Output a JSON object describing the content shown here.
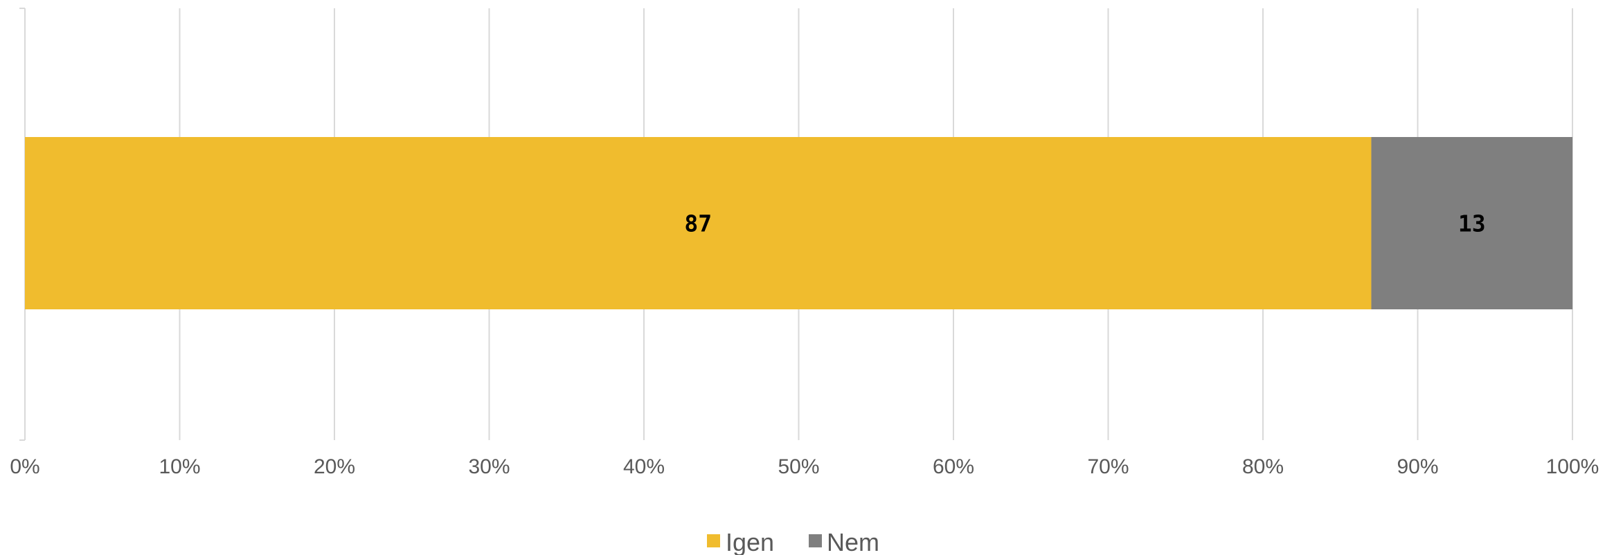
{
  "chart_data": {
    "type": "bar",
    "orientation": "horizontal",
    "stacked": "percent",
    "categories": [
      ""
    ],
    "series": [
      {
        "name": "Igen",
        "values": [
          87
        ],
        "color": "#F0BC2E",
        "label": "87"
      },
      {
        "name": "Nem",
        "values": [
          13
        ],
        "color": "#7F7F7F",
        "label": "13"
      }
    ],
    "xlim": [
      0,
      100
    ],
    "x_ticks": [
      "0%",
      "10%",
      "20%",
      "30%",
      "40%",
      "50%",
      "60%",
      "70%",
      "80%",
      "90%",
      "100%"
    ],
    "grid": true,
    "legend": "bottom",
    "title": "",
    "xlabel": "",
    "ylabel": ""
  }
}
